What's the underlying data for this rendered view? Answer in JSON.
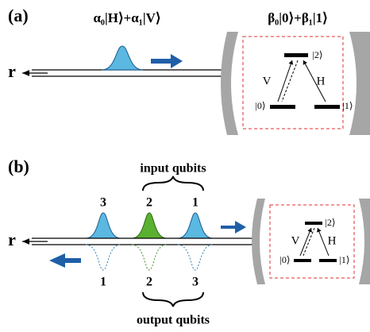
{
  "panel_a": {
    "label": "(a)",
    "input_state": "α₀|H⟩+α₁|V⟩",
    "atom_state": "β₀|0⟩+β₁|1⟩",
    "port": "r",
    "levels": {
      "excited": "|2⟩",
      "ground_0": "|0⟩",
      "ground_1": "|1⟩"
    },
    "transitions": {
      "v": "V",
      "h": "H"
    }
  },
  "panel_b": {
    "label": "(b)",
    "input_caption": "input qubits",
    "input_numbers": [
      "3",
      "2",
      "1"
    ],
    "port": "r",
    "output_numbers": [
      "1",
      "2",
      "3"
    ],
    "output_caption": "output qubits",
    "levels": {
      "excited": "|2⟩",
      "ground_0": "|0⟩",
      "ground_1": "|1⟩"
    },
    "transitions": {
      "v": "V",
      "h": "H"
    }
  }
}
